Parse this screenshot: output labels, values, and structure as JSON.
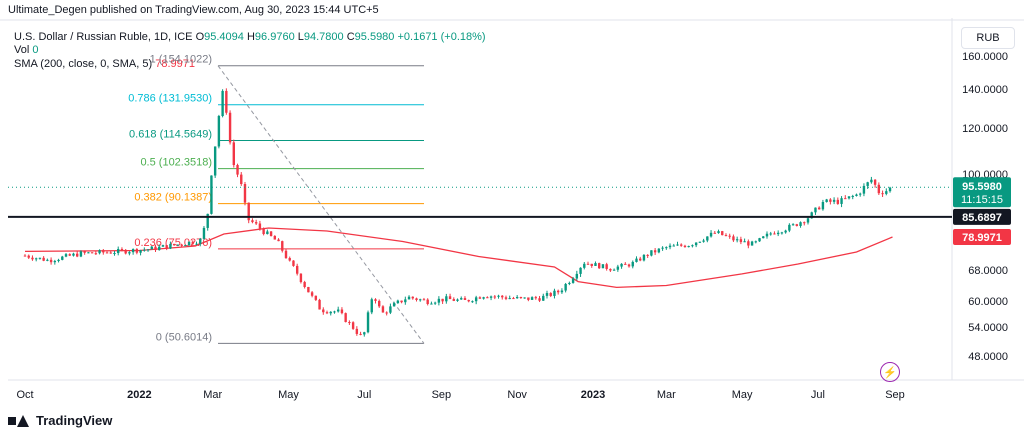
{
  "publisher": "Ultimate_Degen published on TradingView.com, Aug 30, 2023 15:44 UTC+5",
  "legend": {
    "symbol": "U.S. Dollar / Russian Ruble, 1D, ICE",
    "o_label": "O",
    "o": "95.4094",
    "h_label": "H",
    "h": "96.9760",
    "l_label": "L",
    "l": "94.7800",
    "c_label": "C",
    "c": "95.5980",
    "change": "+0.1671 (+0.18%)",
    "vol_label": "Vol",
    "vol": "0",
    "sma_label": "SMA (200, close, 0, SMA, 5)",
    "sma": "78.9971"
  },
  "currency": "RUB",
  "brand": "TradingView",
  "colors": {
    "up": "#089981",
    "down": "#f23645",
    "sma": "#f23645",
    "price_tag": "#089981"
  },
  "chart_data": {
    "type": "candlestick",
    "y_ticks": [
      "160.0000",
      "140.0000",
      "120.0000",
      "100.0000",
      "68.0000",
      "60.0000",
      "54.0000",
      "48.0000"
    ],
    "x_ticks": [
      "Oct",
      "2022",
      "Mar",
      "May",
      "Jul",
      "Sep",
      "Nov",
      "2023",
      "Mar",
      "May",
      "Jul",
      "Sep"
    ],
    "price_tag": {
      "value": "95.5980",
      "countdown": "11:15:15"
    },
    "support_level": "85.6897",
    "sma_tag": "78.9971",
    "fib_levels": [
      {
        "ratio": "1",
        "value": "154.1022",
        "color": "#787b86"
      },
      {
        "ratio": "0.786",
        "value": "131.9530",
        "color": "#00bcd4"
      },
      {
        "ratio": "0.618",
        "value": "114.5649",
        "color": "#089981"
      },
      {
        "ratio": "0.5",
        "value": "102.3518",
        "color": "#4caf50"
      },
      {
        "ratio": "0.382",
        "value": "90.1387",
        "color": "#ff9800"
      },
      {
        "ratio": "0.236",
        "value": "75.0276",
        "color": "#f23645"
      },
      {
        "ratio": "0",
        "value": "50.6014",
        "color": "#787b86"
      }
    ],
    "close_path": [
      [
        "2021-10-01",
        72.8
      ],
      [
        "2021-10-20",
        71.2
      ],
      [
        "2021-11-15",
        73.5
      ],
      [
        "2021-12-10",
        74.0
      ],
      [
        "2022-01-10",
        75.0
      ],
      [
        "2022-02-01",
        76.5
      ],
      [
        "2022-02-20",
        78.0
      ],
      [
        "2022-02-25",
        87.0
      ],
      [
        "2022-03-01",
        105.0
      ],
      [
        "2022-03-05",
        120.0
      ],
      [
        "2022-03-08",
        139.0
      ],
      [
        "2022-03-11",
        135.0
      ],
      [
        "2022-03-14",
        117.0
      ],
      [
        "2022-03-18",
        104.0
      ],
      [
        "2022-03-24",
        96.0
      ],
      [
        "2022-03-29",
        85.0
      ],
      [
        "2022-04-05",
        83.0
      ],
      [
        "2022-04-12",
        80.5
      ],
      [
        "2022-04-22",
        77.5
      ],
      [
        "2022-05-01",
        71.0
      ],
      [
        "2022-05-12",
        65.0
      ],
      [
        "2022-05-20",
        61.0
      ],
      [
        "2022-05-27",
        58.0
      ],
      [
        "2022-06-10",
        57.5
      ],
      [
        "2022-06-20",
        54.5
      ],
      [
        "2022-06-30",
        51.5
      ],
      [
        "2022-07-08",
        62.0
      ],
      [
        "2022-07-15",
        57.0
      ],
      [
        "2022-07-25",
        59.0
      ],
      [
        "2022-08-05",
        61.0
      ],
      [
        "2022-08-20",
        60.0
      ],
      [
        "2022-09-05",
        60.5
      ],
      [
        "2022-09-20",
        60.0
      ],
      [
        "2022-10-05",
        61.5
      ],
      [
        "2022-10-20",
        61.0
      ],
      [
        "2022-11-05",
        60.5
      ],
      [
        "2022-11-20",
        60.8
      ],
      [
        "2022-12-05",
        62.5
      ],
      [
        "2022-12-15",
        66.0
      ],
      [
        "2022-12-25",
        70.5
      ],
      [
        "2023-01-05",
        69.5
      ],
      [
        "2023-01-15",
        68.5
      ],
      [
        "2023-02-01",
        70.0
      ],
      [
        "2023-02-15",
        73.5
      ],
      [
        "2023-03-01",
        75.5
      ],
      [
        "2023-03-20",
        76.5
      ],
      [
        "2023-04-10",
        80.5
      ],
      [
        "2023-04-25",
        78.0
      ],
      [
        "2023-05-10",
        76.5
      ],
      [
        "2023-05-25",
        80.5
      ],
      [
        "2023-06-10",
        82.5
      ],
      [
        "2023-06-25",
        86.0
      ],
      [
        "2023-07-05",
        90.5
      ],
      [
        "2023-07-20",
        91.0
      ],
      [
        "2023-08-01",
        93.0
      ],
      [
        "2023-08-14",
        98.5
      ],
      [
        "2023-08-18",
        94.0
      ],
      [
        "2023-08-25",
        94.5
      ],
      [
        "2023-08-30",
        95.6
      ]
    ],
    "sma_path": [
      [
        "2021-10-01",
        74.2
      ],
      [
        "2022-01-01",
        74.5
      ],
      [
        "2022-02-15",
        76.0
      ],
      [
        "2022-03-10",
        80.0
      ],
      [
        "2022-04-15",
        82.0
      ],
      [
        "2022-06-01",
        81.0
      ],
      [
        "2022-08-01",
        77.5
      ],
      [
        "2022-10-01",
        72.5
      ],
      [
        "2022-12-01",
        69.0
      ],
      [
        "2022-12-20",
        65.0
      ],
      [
        "2023-01-20",
        63.5
      ],
      [
        "2023-03-01",
        64.0
      ],
      [
        "2023-05-01",
        67.0
      ],
      [
        "2023-06-15",
        70.0
      ],
      [
        "2023-08-01",
        74.0
      ],
      [
        "2023-08-30",
        78.9971
      ]
    ]
  }
}
